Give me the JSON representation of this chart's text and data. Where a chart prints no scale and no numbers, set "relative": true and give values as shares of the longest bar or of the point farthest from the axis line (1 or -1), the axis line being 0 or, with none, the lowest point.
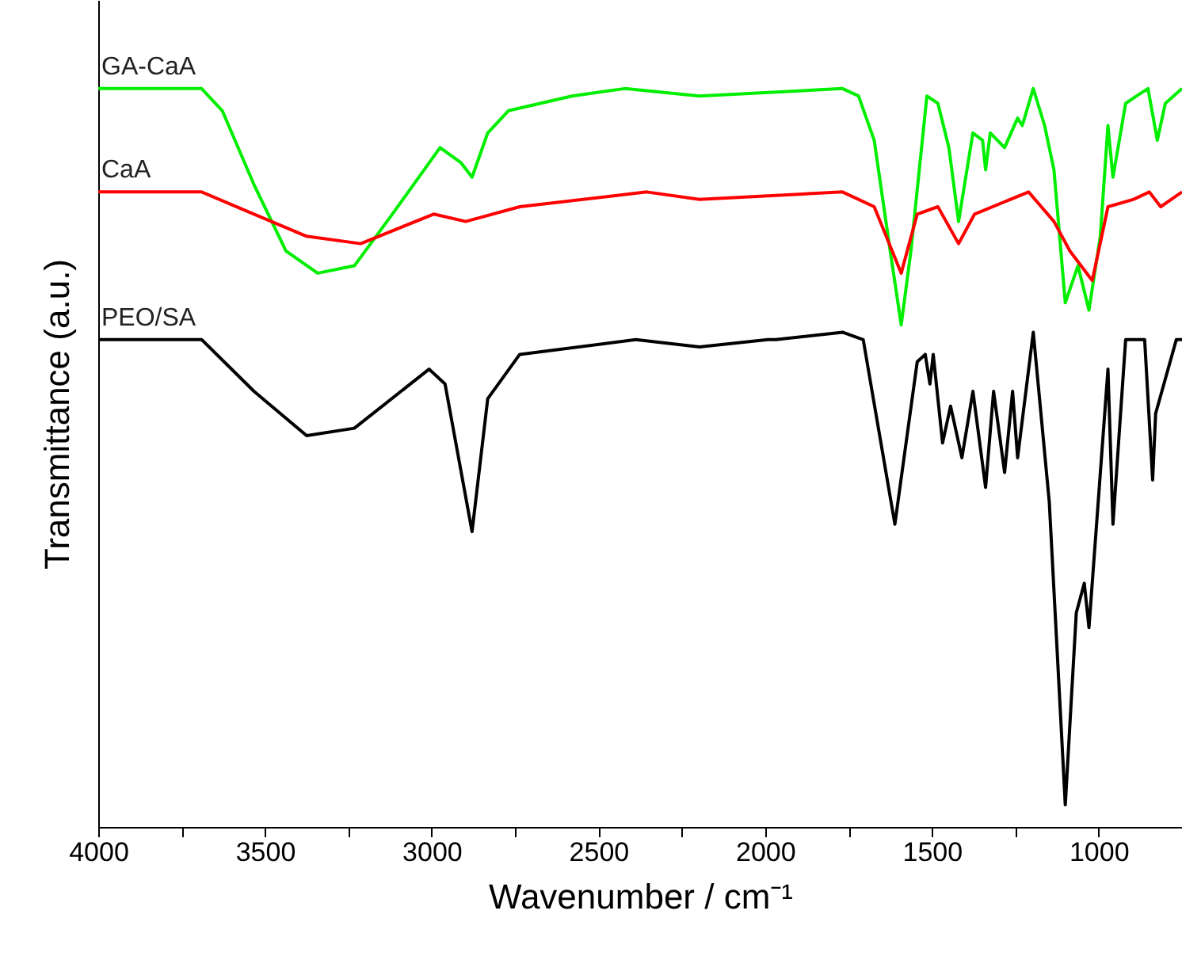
{
  "chart_data": {
    "type": "line",
    "relative": true,
    "xlabel": "Wavenumber / cm⁻¹",
    "ylabel": "Transmittance (a.u.)",
    "xlim": [
      4000,
      750
    ],
    "xticks": [
      4000,
      {
        "value": 3750,
        "label": null
      },
      3500,
      {
        "value": 3250,
        "label": null
      },
      3000,
      {
        "value": 2750,
        "label": null
      },
      2500,
      {
        "value": 2250,
        "label": null
      },
      2000,
      {
        "value": 1750,
        "label": null
      },
      1500,
      {
        "value": 1250,
        "label": null
      },
      1000,
      {
        "value": 750,
        "label": null
      }
    ],
    "grid": false,
    "series": [
      {
        "name": "GA-CaA",
        "color": "#00ee00",
        "x": [
          4000,
          3690,
          3628,
          3533,
          3437,
          3342,
          3232,
          3118,
          2975,
          2913,
          2879,
          2832,
          2770,
          2579,
          2421,
          2197,
          1768,
          1720,
          1673,
          1625,
          1592,
          1563,
          1515,
          1482,
          1449,
          1420,
          1377,
          1348,
          1339,
          1325,
          1282,
          1243,
          1229,
          1196,
          1162,
          1134,
          1100,
          1062,
          1029,
          995,
          972,
          957,
          919,
          886,
          852,
          824,
          800,
          750
        ],
        "values": [
          1.0,
          1.0,
          0.97,
          0.87,
          0.78,
          0.75,
          0.76,
          0.83,
          0.92,
          0.9,
          0.88,
          0.94,
          0.97,
          0.99,
          1.0,
          0.99,
          1.0,
          0.99,
          0.93,
          0.78,
          0.68,
          0.78,
          0.99,
          0.98,
          0.92,
          0.82,
          0.94,
          0.93,
          0.89,
          0.94,
          0.92,
          0.96,
          0.95,
          1.0,
          0.95,
          0.89,
          0.71,
          0.76,
          0.7,
          0.8,
          0.95,
          0.88,
          0.98,
          0.99,
          1.0,
          0.93,
          0.98,
          1.0
        ]
      },
      {
        "name": "CaA",
        "color": "#ff0000",
        "x": [
          4000,
          3690,
          3533,
          3375,
          3213,
          2994,
          2898,
          2736,
          2355,
          2197,
          1768,
          1673,
          1592,
          1544,
          1482,
          1420,
          1372,
          1210,
          1134,
          1086,
          1019,
          972,
          895,
          848,
          814,
          750
        ],
        "values": [
          0.86,
          0.86,
          0.83,
          0.8,
          0.79,
          0.83,
          0.82,
          0.84,
          0.86,
          0.85,
          0.86,
          0.84,
          0.75,
          0.83,
          0.84,
          0.79,
          0.83,
          0.86,
          0.82,
          0.78,
          0.74,
          0.84,
          0.85,
          0.86,
          0.84,
          0.86
        ]
      },
      {
        "name": "PEO/SA",
        "color": "#000000",
        "x": [
          4000,
          3690,
          3533,
          3375,
          3232,
          3008,
          2960,
          2879,
          2832,
          2736,
          2388,
          2197,
          1992,
          1968,
          1768,
          1706,
          1611,
          1544,
          1520,
          1506,
          1496,
          1468,
          1444,
          1410,
          1377,
          1339,
          1315,
          1282,
          1258,
          1243,
          1196,
          1148,
          1100,
          1067,
          1043,
          1029,
          972,
          957,
          919,
          862,
          838,
          829,
          767,
          750
        ],
        "values": [
          0.66,
          0.66,
          0.59,
          0.53,
          0.54,
          0.62,
          0.6,
          0.4,
          0.58,
          0.64,
          0.66,
          0.65,
          0.66,
          0.66,
          0.67,
          0.66,
          0.41,
          0.63,
          0.64,
          0.6,
          0.64,
          0.52,
          0.57,
          0.5,
          0.59,
          0.46,
          0.59,
          0.48,
          0.59,
          0.5,
          0.67,
          0.44,
          0.03,
          0.29,
          0.33,
          0.27,
          0.62,
          0.41,
          0.66,
          0.66,
          0.47,
          0.56,
          0.66,
          0.66
        ]
      }
    ]
  }
}
